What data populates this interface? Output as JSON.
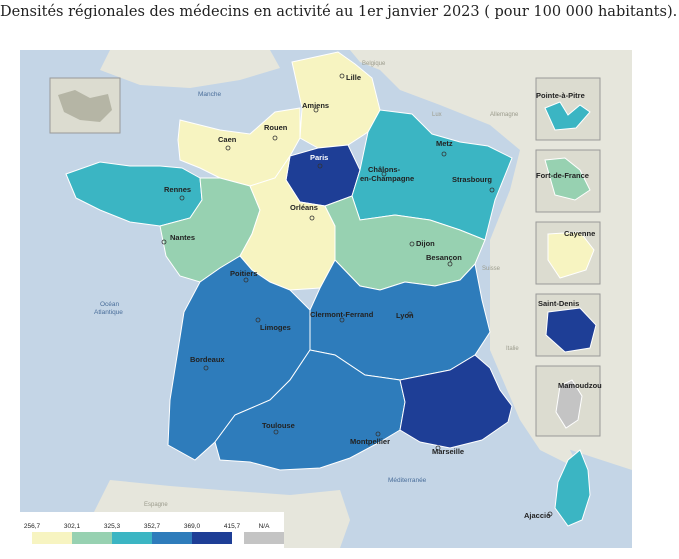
{
  "title": "Densités régionales des médecins en activité au 1er janvier 2023 ( pour 100 000 habitants).",
  "colors": {
    "sea": "#c4d5e6",
    "land": "#e6e6dc",
    "class1": "#f7f4c1",
    "class2": "#97d1b1",
    "class3": "#3bb5c3",
    "class4": "#2e7cbb",
    "class5": "#1e3e96",
    "na": "#c4c4c4"
  },
  "legend": {
    "ticks": [
      "256,7",
      "302,1",
      "325,3",
      "352,7",
      "369,0",
      "415,7"
    ],
    "na_label": "N/A"
  },
  "regions": [
    {
      "name": "Hauts-de-France",
      "class": 1
    },
    {
      "name": "Normandie",
      "class": 1
    },
    {
      "name": "Île-de-France",
      "class": 5
    },
    {
      "name": "Grand Est",
      "class": 3
    },
    {
      "name": "Bretagne",
      "class": 3
    },
    {
      "name": "Pays de la Loire",
      "class": 2
    },
    {
      "name": "Centre-Val de Loire",
      "class": 1
    },
    {
      "name": "Bourgogne-Franche-Comté",
      "class": 2
    },
    {
      "name": "Nouvelle-Aquitaine",
      "class": 4
    },
    {
      "name": "Auvergne-Rhône-Alpes",
      "class": 4
    },
    {
      "name": "Occitanie",
      "class": 4
    },
    {
      "name": "Provence-Alpes-Côte d'Azur",
      "class": 5
    },
    {
      "name": "Corse",
      "class": 3
    },
    {
      "name": "Guadeloupe",
      "class": 3
    },
    {
      "name": "Martinique",
      "class": 2
    },
    {
      "name": "Guyane",
      "class": 1
    },
    {
      "name": "La Réunion",
      "class": 5
    },
    {
      "name": "Mayotte",
      "class": 0
    }
  ],
  "cities": {
    "lille": "Lille",
    "amiens": "Amiens",
    "rouen": "Rouen",
    "caen": "Caen",
    "paris": "Paris",
    "chalons1": "Châlons-",
    "chalons2": "en-Champagne",
    "metz": "Metz",
    "strasbourg": "Strasbourg",
    "rennes": "Rennes",
    "orleans": "Orléans",
    "nantes": "Nantes",
    "dijon": "Dijon",
    "besancon": "Besançon",
    "poitiers": "Poitiers",
    "limoges": "Limoges",
    "clermont": "Clermont-Ferrand",
    "lyon": "Lyon",
    "bordeaux": "Bordeaux",
    "toulouse": "Toulouse",
    "montpellier": "Montpellier",
    "marseille": "Marseille",
    "ajaccio": "Ajaccio",
    "pointe_a_pitre": "Pointe-à-Pitre",
    "fort_de_france": "Fort-de-France",
    "cayenne": "Cayenne",
    "saint_denis": "Saint-Denis",
    "mamoudzou": "Mamoudzou"
  },
  "places": {
    "belgique": "Belgique",
    "manche": "Manche",
    "allemagne": "Allemagne",
    "lux": "Lux",
    "suisse": "Suisse",
    "italie": "Italie",
    "ocean1": "Océan",
    "ocean2": "Atlantique",
    "espagne": "Espagne",
    "mediterranee": "Méditerranée"
  }
}
